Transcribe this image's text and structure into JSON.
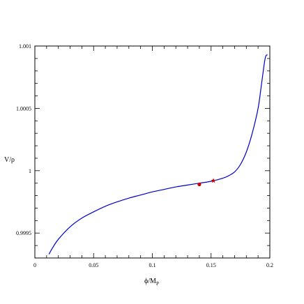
{
  "chart_data": {
    "type": "line",
    "title": "",
    "xlabel": "ϕ/M",
    "xlabel_sub": "P",
    "ylabel": "V/ρ",
    "xlim": [
      0,
      0.2
    ],
    "ylim": [
      0.9993,
      1.001
    ],
    "x_ticks": [
      0,
      0.05,
      0.1,
      0.15,
      0.2
    ],
    "x_tick_labels": [
      "0",
      "0.05",
      "0.1",
      "0.15",
      "0.2"
    ],
    "y_ticks": [
      0.9995,
      1,
      1.0005,
      1.001
    ],
    "y_tick_labels": [
      "0.9995",
      "1",
      "1.0005",
      "1.001"
    ],
    "grid": false,
    "series": [
      {
        "color": "#0000cc",
        "x": [
          0.012,
          0.015,
          0.02,
          0.03,
          0.04,
          0.05,
          0.06,
          0.07,
          0.08,
          0.09,
          0.1,
          0.11,
          0.12,
          0.13,
          0.14,
          0.15,
          0.16,
          0.165,
          0.17,
          0.175,
          0.18,
          0.185,
          0.19,
          0.193,
          0.196,
          0.198
        ],
        "y": [
          0.99933,
          0.99938,
          0.99945,
          0.99955,
          0.99962,
          0.99967,
          0.999715,
          0.99975,
          0.99978,
          0.999805,
          0.99983,
          0.99985,
          0.99987,
          0.999885,
          0.9999,
          0.999915,
          0.99994,
          0.99996,
          0.99999,
          1.00005,
          1.00015,
          1.0003,
          1.0005,
          1.0007,
          1.0009,
          1.00093
        ]
      }
    ],
    "markers": [
      {
        "shape": "circle",
        "color": "#cc0000",
        "x": 0.14,
        "y": 0.99989
      },
      {
        "shape": "star",
        "color": "#cc0000",
        "x": 0.152,
        "y": 0.99992
      }
    ]
  }
}
